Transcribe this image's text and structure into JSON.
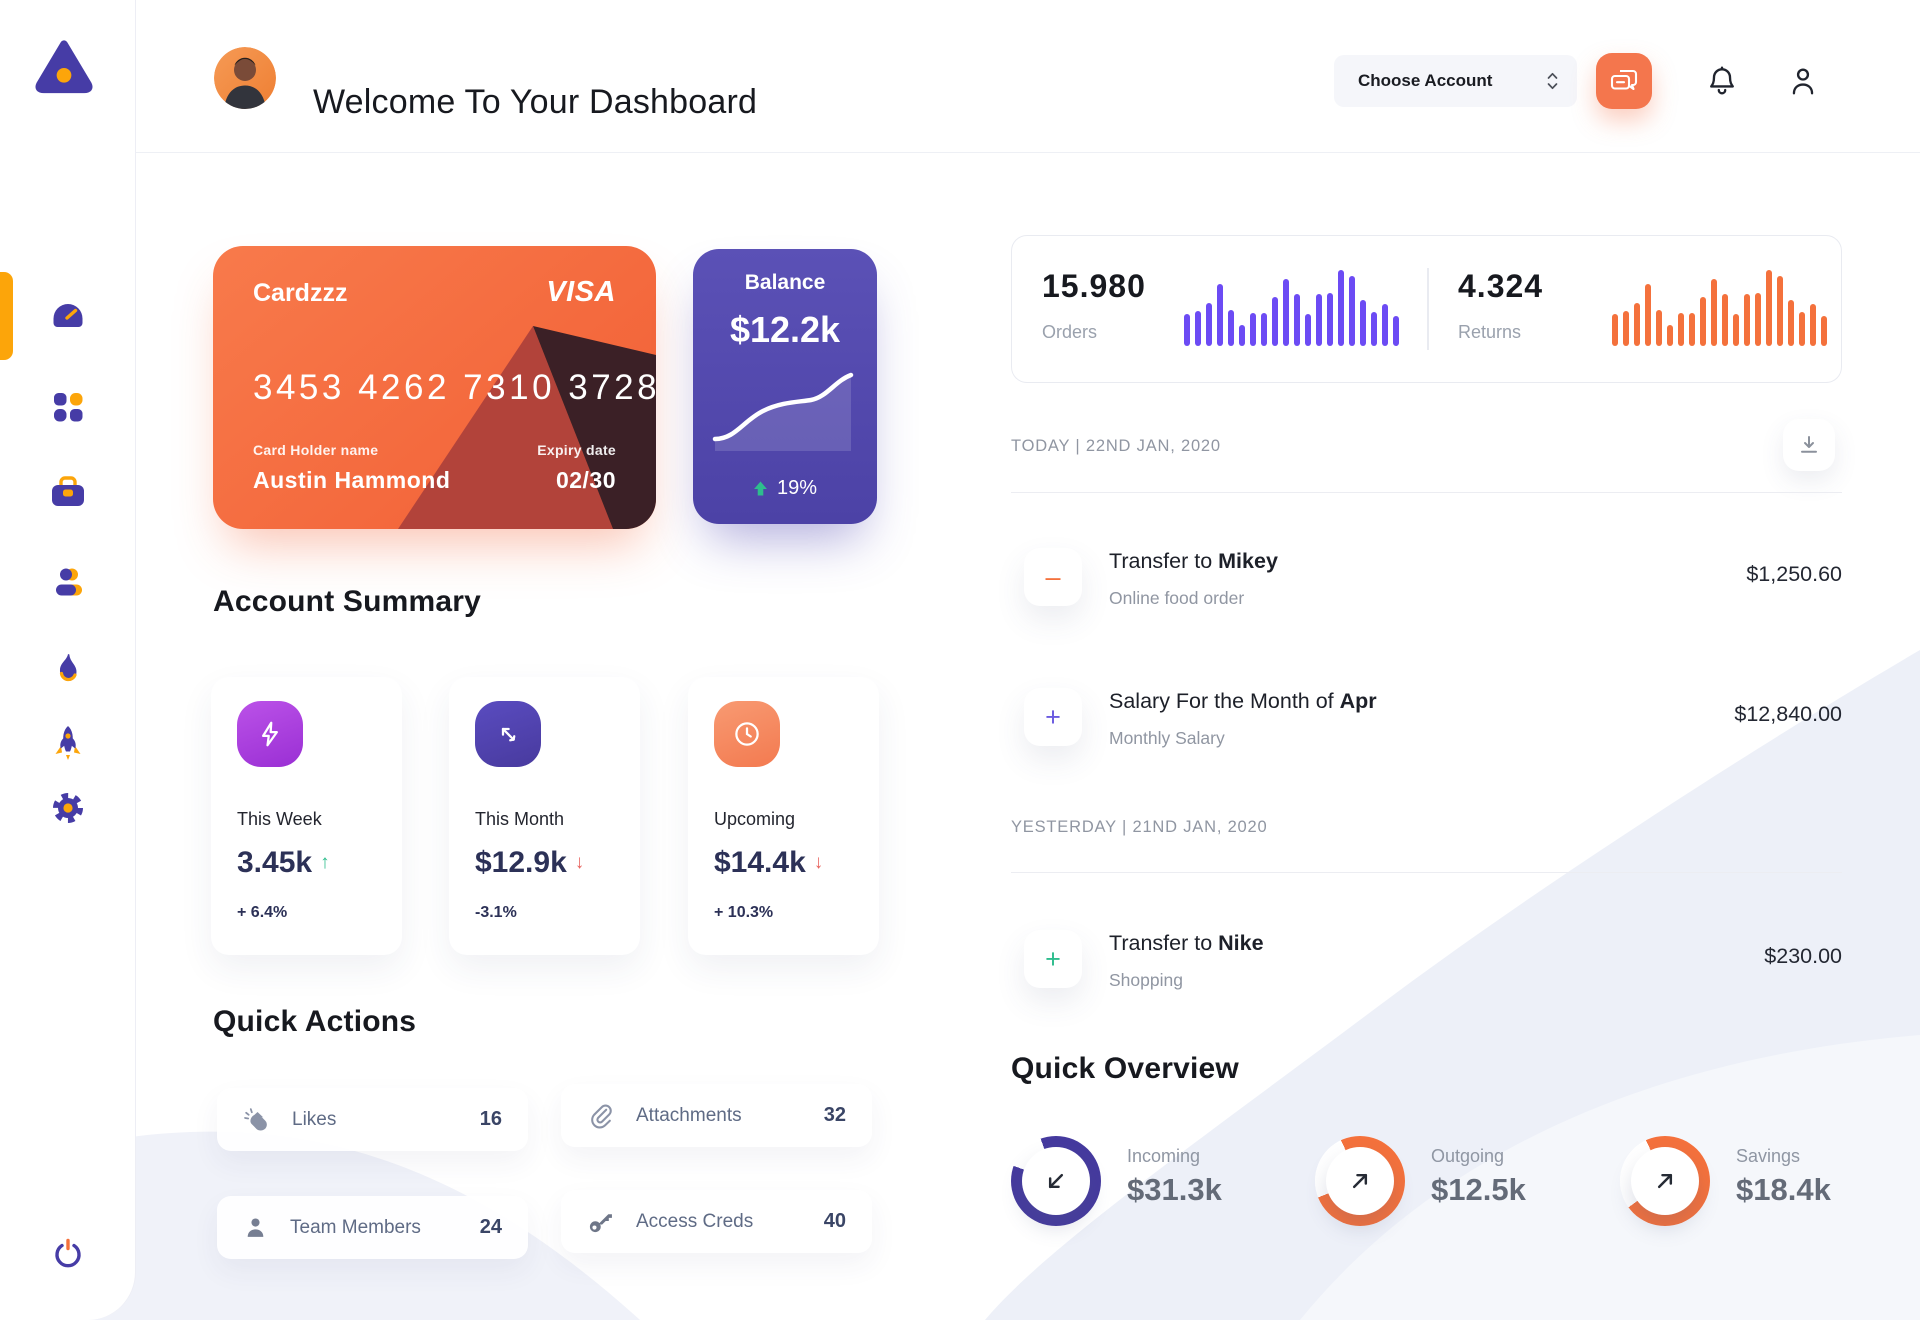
{
  "colors": {
    "accent_orange": "#F4713C",
    "accent_gold": "#FCA50A",
    "deep_purple": "#463CA6",
    "bars_purple": "#6C4BF4",
    "donut_purple": "#453A9E",
    "green": "#2EBD8D",
    "red": "#E8645F"
  },
  "header": {
    "title": "Welcome To Your Dashboard",
    "account_dropdown": "Choose Account"
  },
  "wallet_card": {
    "name": "Cardzzz",
    "brand": "VISA",
    "number": "3453 4262 7310 3728",
    "holder_label": "Card Holder name",
    "holder": "Austin Hammond",
    "expiry_label": "Expiry date",
    "expiry": "02/30"
  },
  "balance_card": {
    "label": "Balance",
    "amount": "$12.2k",
    "change": "19%"
  },
  "stats": {
    "orders": {
      "value": "15.980",
      "label": "Orders",
      "color": "#6C4BF4",
      "bars": [
        42,
        46,
        56,
        82,
        47,
        28,
        44,
        44,
        64,
        88,
        68,
        42,
        68,
        70,
        100,
        92,
        60,
        45,
        55,
        40
      ]
    },
    "returns": {
      "value": "4.324",
      "label": "Returns",
      "color": "#F4713C",
      "bars": [
        42,
        46,
        56,
        82,
        47,
        28,
        44,
        44,
        64,
        88,
        68,
        42,
        68,
        70,
        100,
        92,
        60,
        45,
        55,
        40
      ]
    }
  },
  "account_summary": {
    "title": "Account Summary",
    "cards": [
      {
        "label": "This Week",
        "value": "3.45k",
        "trend": "up",
        "percent": "+ 6.4%"
      },
      {
        "label": "This Month",
        "value": "$12.9k",
        "trend": "down",
        "percent": "-3.1%"
      },
      {
        "label": "Upcoming",
        "value": "$14.4k",
        "trend": "down",
        "percent": "+ 10.3%"
      }
    ]
  },
  "quick_actions": {
    "title": "Quick Actions",
    "items": [
      {
        "label": "Likes",
        "count": "16"
      },
      {
        "label": "Attachments",
        "count": "32"
      },
      {
        "label": "Team Members",
        "count": "24"
      },
      {
        "label": "Access Creds",
        "count": "40"
      }
    ]
  },
  "transactions": {
    "today_heading": "TODAY | 22ND JAN, 2020",
    "yesterday_heading": "YESTERDAY | 21ND JAN, 2020",
    "rows": [
      {
        "title_prefix": "Transfer to ",
        "title_bold": "Mikey",
        "subtitle": "Online food order",
        "amount": "$1,250.60",
        "symbol": "–",
        "accent": "orange"
      },
      {
        "title_prefix": "Salary For the Month of ",
        "title_bold": "Apr",
        "subtitle": "Monthly Salary",
        "amount": "$12,840.00",
        "symbol": "+",
        "accent": "purple"
      },
      {
        "title_prefix": "Transfer to ",
        "title_bold": "Nike",
        "subtitle": "Shopping",
        "amount": "$230.00",
        "symbol": "+",
        "accent": "green"
      }
    ]
  },
  "quick_overview": {
    "title": "Quick Overview",
    "items": [
      {
        "label": "Incoming",
        "amount": "$31.3k",
        "percent": 86,
        "start_deg": 340,
        "color": "#453A9E",
        "direction": "down-left"
      },
      {
        "label": "Outgoing",
        "amount": "$12.5k",
        "percent": 76,
        "start_deg": 335,
        "color": "#F4713C",
        "direction": "up-right"
      },
      {
        "label": "Savings",
        "amount": "$18.4k",
        "percent": 72,
        "start_deg": 335,
        "color": "#F4713C",
        "direction": "up-right"
      }
    ]
  }
}
